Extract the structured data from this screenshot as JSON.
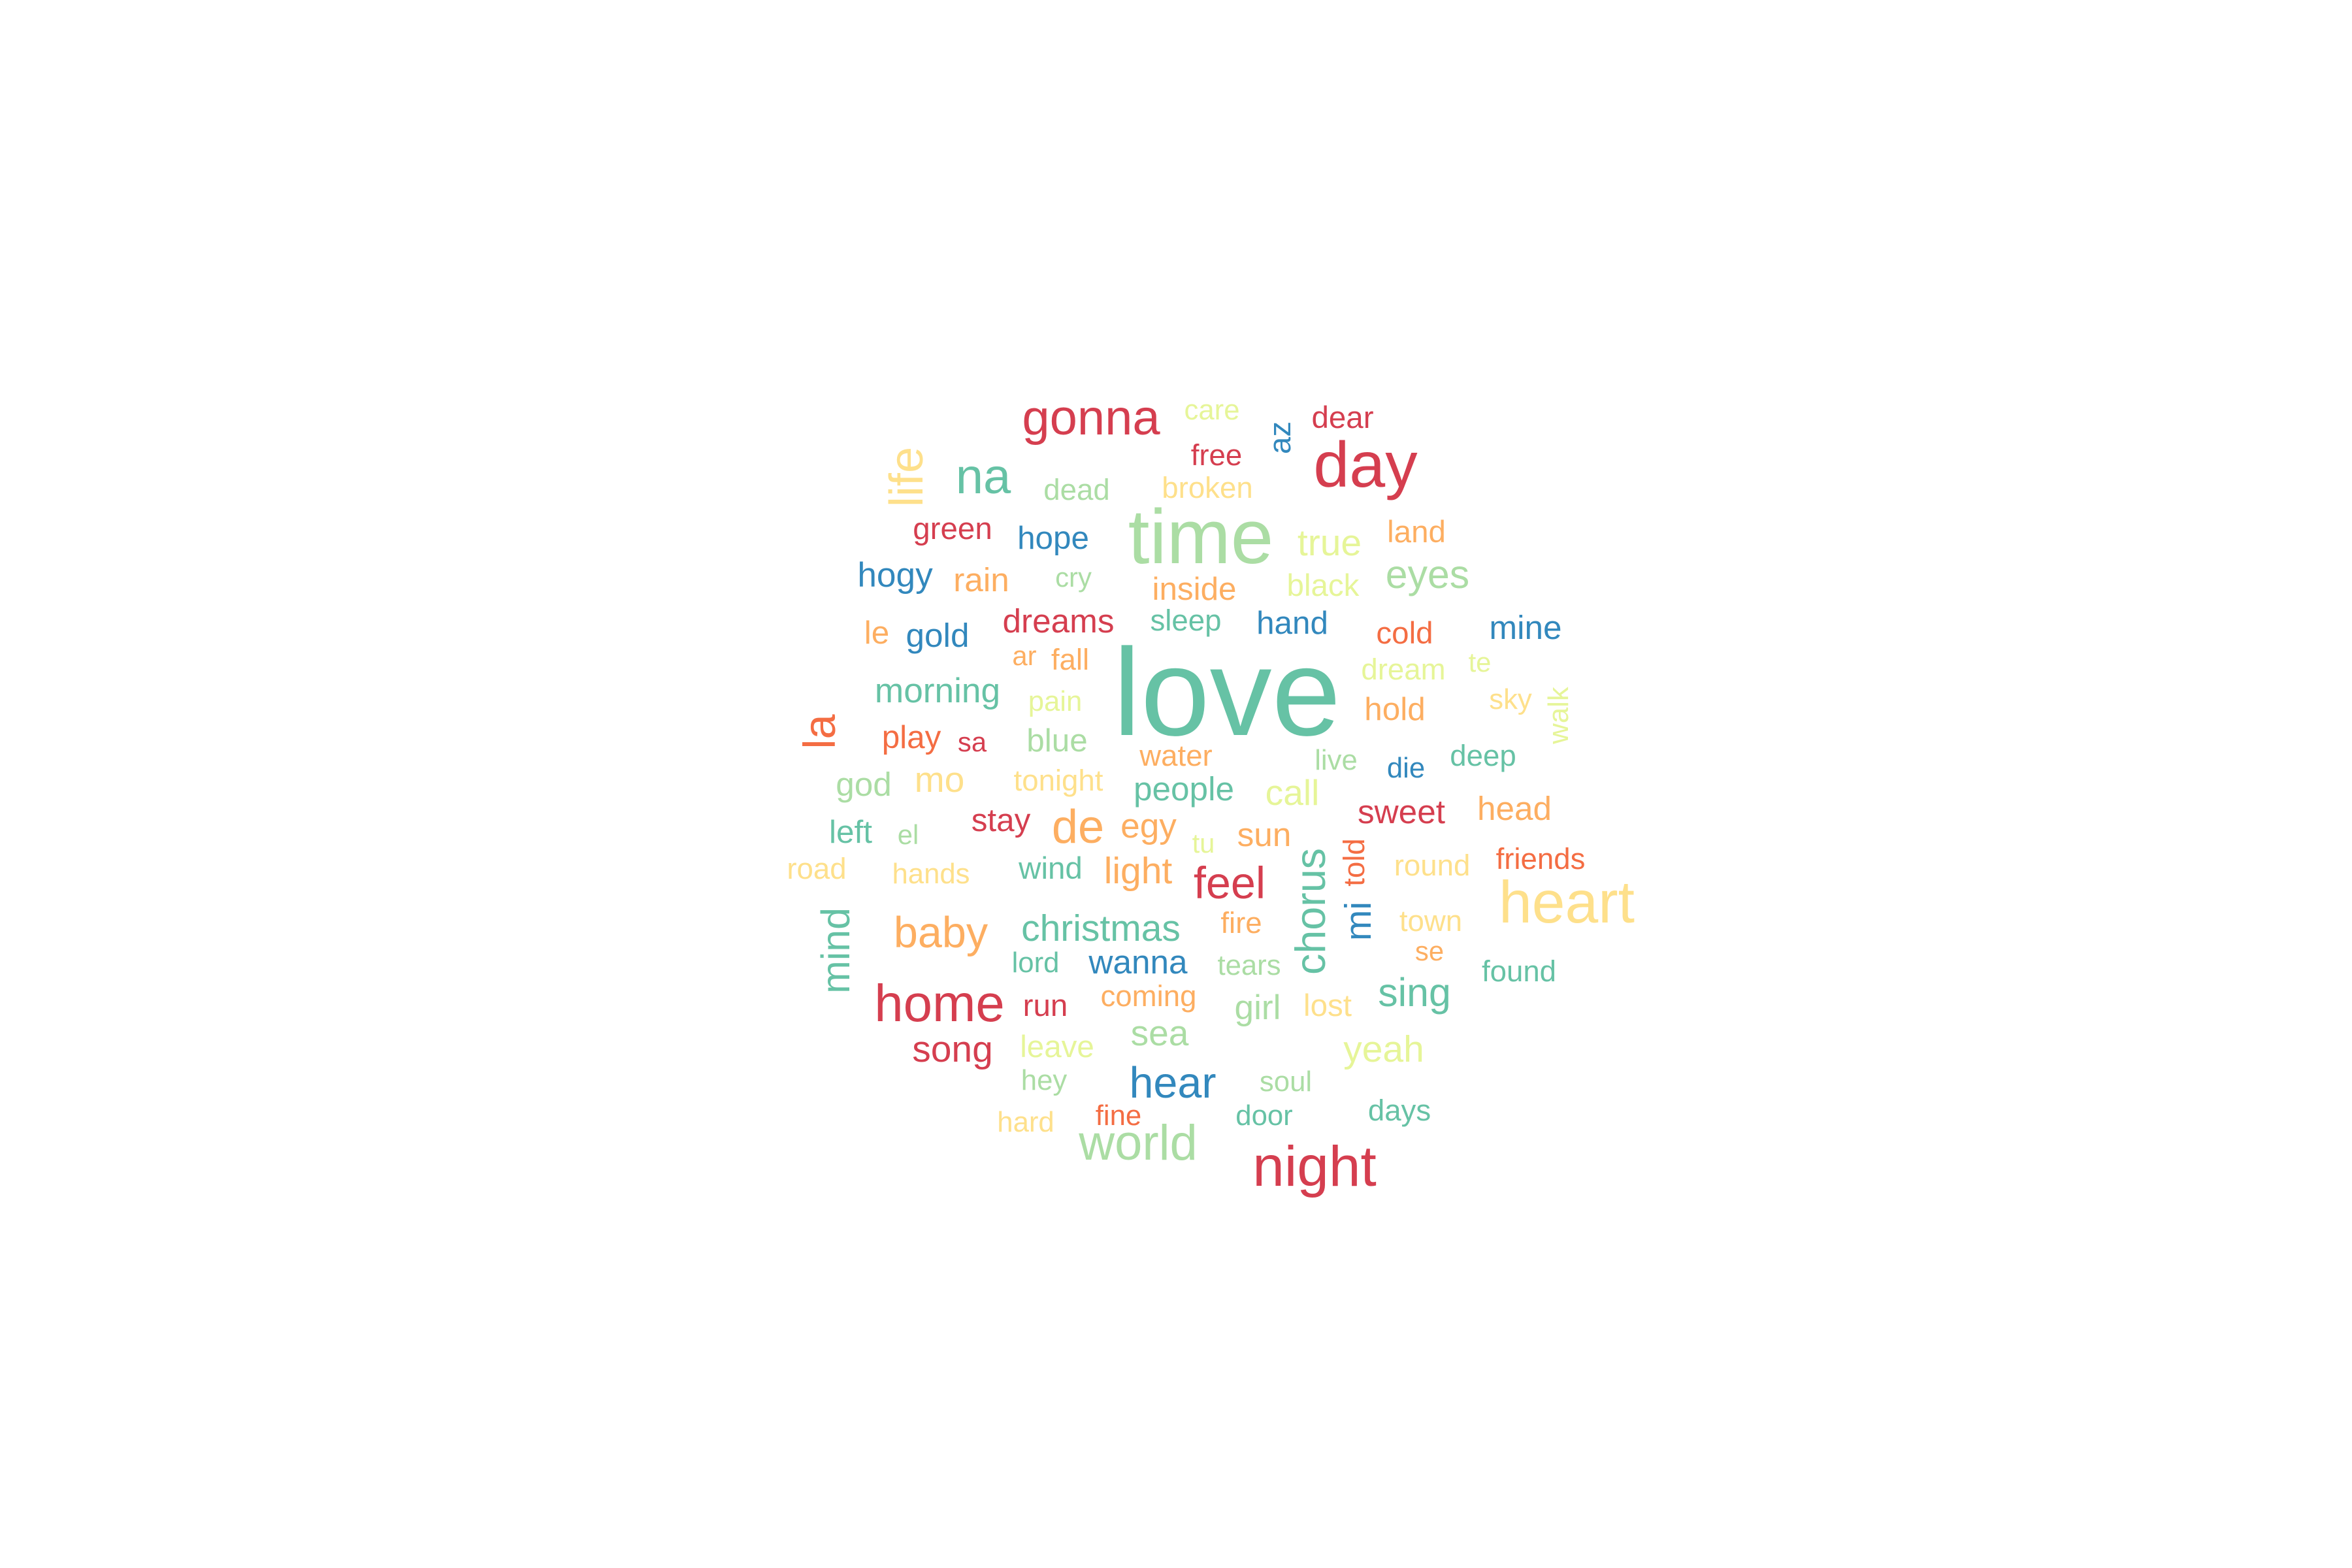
{
  "palette": {
    "red": "#d53e4f",
    "orange_red": "#f46d43",
    "orange": "#fdae61",
    "yellow": "#fee08b",
    "pale_yellow": "#e6f598",
    "light_green": "#abdda4",
    "teal": "#66c2a5",
    "blue": "#3288bd"
  },
  "words": [
    {
      "text": "love",
      "weight": 100,
      "color": "teal"
    },
    {
      "text": "time",
      "weight": 62,
      "color": "light_green"
    },
    {
      "text": "day",
      "weight": 52,
      "color": "red"
    },
    {
      "text": "heart",
      "weight": 48,
      "color": "yellow"
    },
    {
      "text": "night",
      "weight": 46,
      "color": "red"
    },
    {
      "text": "home",
      "weight": 42,
      "color": "red"
    },
    {
      "text": "world",
      "weight": 40,
      "color": "light_green"
    },
    {
      "text": "gonna",
      "weight": 40,
      "color": "red"
    },
    {
      "text": "na",
      "weight": 40,
      "color": "teal"
    },
    {
      "text": "life",
      "weight": 38,
      "color": "yellow"
    },
    {
      "text": "de",
      "weight": 38,
      "color": "orange"
    },
    {
      "text": "la",
      "weight": 36,
      "color": "orange_red"
    },
    {
      "text": "feel",
      "weight": 36,
      "color": "red"
    },
    {
      "text": "baby",
      "weight": 35,
      "color": "orange"
    },
    {
      "text": "hear",
      "weight": 35,
      "color": "blue"
    },
    {
      "text": "chorus",
      "weight": 34,
      "color": "teal"
    },
    {
      "text": "mind",
      "weight": 32,
      "color": "teal"
    },
    {
      "text": "sing",
      "weight": 32,
      "color": "teal"
    },
    {
      "text": "eyes",
      "weight": 32,
      "color": "light_green"
    },
    {
      "text": "yeah",
      "weight": 30,
      "color": "pale_yellow"
    },
    {
      "text": "true",
      "weight": 30,
      "color": "pale_yellow"
    },
    {
      "text": "light",
      "weight": 30,
      "color": "orange"
    },
    {
      "text": "christmas",
      "weight": 30,
      "color": "teal"
    },
    {
      "text": "song",
      "weight": 30,
      "color": "red"
    },
    {
      "text": "mi",
      "weight": 30,
      "color": "blue"
    },
    {
      "text": "sea",
      "weight": 29,
      "color": "light_green"
    },
    {
      "text": "call",
      "weight": 29,
      "color": "pale_yellow"
    },
    {
      "text": "mo",
      "weight": 29,
      "color": "yellow"
    },
    {
      "text": "morning",
      "weight": 28,
      "color": "teal"
    },
    {
      "text": "hogy",
      "weight": 28,
      "color": "blue"
    },
    {
      "text": "girl",
      "weight": 28,
      "color": "light_green"
    },
    {
      "text": "egy",
      "weight": 28,
      "color": "orange"
    },
    {
      "text": "dreams",
      "weight": 27,
      "color": "red"
    },
    {
      "text": "wanna",
      "weight": 27,
      "color": "blue"
    },
    {
      "text": "sweet",
      "weight": 27,
      "color": "red"
    },
    {
      "text": "mine",
      "weight": 27,
      "color": "blue"
    },
    {
      "text": "head",
      "weight": 27,
      "color": "orange"
    },
    {
      "text": "people",
      "weight": 27,
      "color": "teal"
    },
    {
      "text": "gold",
      "weight": 27,
      "color": "blue"
    },
    {
      "text": "god",
      "weight": 27,
      "color": "light_green"
    },
    {
      "text": "sun",
      "weight": 27,
      "color": "orange"
    },
    {
      "text": "rain",
      "weight": 27,
      "color": "orange"
    },
    {
      "text": "left",
      "weight": 26,
      "color": "teal"
    },
    {
      "text": "hand",
      "weight": 26,
      "color": "blue"
    },
    {
      "text": "hope",
      "weight": 26,
      "color": "blue"
    },
    {
      "text": "inside",
      "weight": 26,
      "color": "orange"
    },
    {
      "text": "le",
      "weight": 26,
      "color": "orange"
    },
    {
      "text": "stay",
      "weight": 26,
      "color": "red"
    },
    {
      "text": "play",
      "weight": 26,
      "color": "orange_red"
    },
    {
      "text": "hold",
      "weight": 26,
      "color": "orange"
    },
    {
      "text": "blue",
      "weight": 26,
      "color": "light_green"
    },
    {
      "text": "green",
      "weight": 25,
      "color": "red"
    },
    {
      "text": "dear",
      "weight": 25,
      "color": "red"
    },
    {
      "text": "land",
      "weight": 25,
      "color": "orange"
    },
    {
      "text": "cold",
      "weight": 25,
      "color": "orange_red"
    },
    {
      "text": "leave",
      "weight": 25,
      "color": "pale_yellow"
    },
    {
      "text": "lost",
      "weight": 25,
      "color": "yellow"
    },
    {
      "text": "wind",
      "weight": 25,
      "color": "teal"
    },
    {
      "text": "run",
      "weight": 25,
      "color": "red"
    },
    {
      "text": "black",
      "weight": 25,
      "color": "pale_yellow"
    },
    {
      "text": "az",
      "weight": 25,
      "color": "blue"
    },
    {
      "text": "told",
      "weight": 24,
      "color": "orange_red"
    },
    {
      "text": "tonight",
      "weight": 24,
      "color": "yellow"
    },
    {
      "text": "town",
      "weight": 24,
      "color": "yellow"
    },
    {
      "text": "round",
      "weight": 24,
      "color": "yellow"
    },
    {
      "text": "road",
      "weight": 24,
      "color": "yellow"
    },
    {
      "text": "fall",
      "weight": 24,
      "color": "orange"
    },
    {
      "text": "dream",
      "weight": 24,
      "color": "pale_yellow"
    },
    {
      "text": "fire",
      "weight": 24,
      "color": "orange"
    },
    {
      "text": "friends",
      "weight": 24,
      "color": "orange_red"
    },
    {
      "text": "deep",
      "weight": 24,
      "color": "teal"
    },
    {
      "text": "free",
      "weight": 24,
      "color": "red"
    },
    {
      "text": "coming",
      "weight": 24,
      "color": "orange"
    },
    {
      "text": "broken",
      "weight": 24,
      "color": "yellow"
    },
    {
      "text": "dead",
      "weight": 24,
      "color": "light_green"
    },
    {
      "text": "water",
      "weight": 24,
      "color": "orange"
    },
    {
      "text": "sleep",
      "weight": 24,
      "color": "teal"
    },
    {
      "text": "days",
      "weight": 24,
      "color": "teal"
    },
    {
      "text": "found",
      "weight": 24,
      "color": "teal"
    },
    {
      "text": "soul",
      "weight": 23,
      "color": "light_green"
    },
    {
      "text": "door",
      "weight": 23,
      "color": "teal"
    },
    {
      "text": "fine",
      "weight": 23,
      "color": "orange_red"
    },
    {
      "text": "hard",
      "weight": 23,
      "color": "yellow"
    },
    {
      "text": "hey",
      "weight": 23,
      "color": "light_green"
    },
    {
      "text": "lord",
      "weight": 23,
      "color": "teal"
    },
    {
      "text": "tears",
      "weight": 23,
      "color": "light_green"
    },
    {
      "text": "hands",
      "weight": 23,
      "color": "yellow"
    },
    {
      "text": "live",
      "weight": 23,
      "color": "light_green"
    },
    {
      "text": "die",
      "weight": 23,
      "color": "blue"
    },
    {
      "text": "pain",
      "weight": 23,
      "color": "pale_yellow"
    },
    {
      "text": "sky",
      "weight": 23,
      "color": "yellow"
    },
    {
      "text": "walk",
      "weight": 23,
      "color": "pale_yellow"
    },
    {
      "text": "care",
      "weight": 23,
      "color": "pale_yellow"
    },
    {
      "text": "cry",
      "weight": 22,
      "color": "light_green"
    },
    {
      "text": "ar",
      "weight": 22,
      "color": "orange"
    },
    {
      "text": "sa",
      "weight": 22,
      "color": "red"
    },
    {
      "text": "se",
      "weight": 22,
      "color": "orange"
    },
    {
      "text": "te",
      "weight": 22,
      "color": "pale_yellow"
    },
    {
      "text": "tu",
      "weight": 22,
      "color": "pale_yellow"
    },
    {
      "text": "el",
      "weight": 22,
      "color": "light_green"
    }
  ]
}
